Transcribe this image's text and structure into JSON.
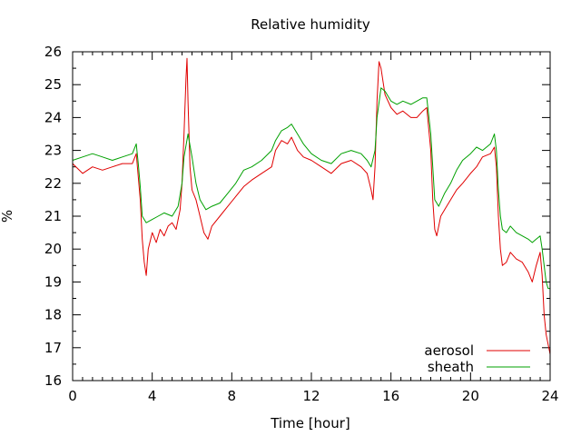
{
  "chart_data": {
    "type": "line",
    "title": "Relative humidity",
    "xlabel": "Time [hour]",
    "ylabel": "%",
    "xlim": [
      0,
      24
    ],
    "ylim": [
      16,
      26
    ],
    "xticks": [
      0,
      4,
      8,
      12,
      16,
      20,
      24
    ],
    "yticks": [
      16,
      17,
      18,
      19,
      20,
      21,
      22,
      23,
      24,
      25,
      26
    ],
    "grid": false,
    "legend_position": "bottom-right",
    "series": [
      {
        "name": "aerosol",
        "color": "#e00000",
        "points": [
          [
            0.0,
            22.6
          ],
          [
            0.5,
            22.3
          ],
          [
            1.0,
            22.5
          ],
          [
            1.5,
            22.4
          ],
          [
            2.0,
            22.5
          ],
          [
            2.5,
            22.6
          ],
          [
            3.0,
            22.6
          ],
          [
            3.2,
            22.9
          ],
          [
            3.3,
            22.2
          ],
          [
            3.4,
            21.5
          ],
          [
            3.5,
            20.3
          ],
          [
            3.6,
            19.6
          ],
          [
            3.7,
            19.2
          ],
          [
            3.8,
            20.0
          ],
          [
            4.0,
            20.5
          ],
          [
            4.2,
            20.2
          ],
          [
            4.4,
            20.6
          ],
          [
            4.6,
            20.4
          ],
          [
            4.8,
            20.7
          ],
          [
            5.0,
            20.8
          ],
          [
            5.2,
            20.6
          ],
          [
            5.4,
            21.2
          ],
          [
            5.5,
            22.0
          ],
          [
            5.6,
            23.5
          ],
          [
            5.7,
            25.2
          ],
          [
            5.75,
            25.8
          ],
          [
            5.8,
            24.5
          ],
          [
            5.9,
            22.5
          ],
          [
            6.0,
            21.8
          ],
          [
            6.2,
            21.5
          ],
          [
            6.4,
            21.0
          ],
          [
            6.6,
            20.5
          ],
          [
            6.8,
            20.3
          ],
          [
            7.0,
            20.7
          ],
          [
            7.4,
            21.0
          ],
          [
            7.8,
            21.3
          ],
          [
            8.2,
            21.6
          ],
          [
            8.6,
            21.9
          ],
          [
            9.0,
            22.1
          ],
          [
            9.5,
            22.3
          ],
          [
            10.0,
            22.5
          ],
          [
            10.2,
            23.0
          ],
          [
            10.5,
            23.3
          ],
          [
            10.8,
            23.2
          ],
          [
            11.0,
            23.4
          ],
          [
            11.3,
            23.0
          ],
          [
            11.6,
            22.8
          ],
          [
            12.0,
            22.7
          ],
          [
            12.5,
            22.5
          ],
          [
            13.0,
            22.3
          ],
          [
            13.5,
            22.6
          ],
          [
            14.0,
            22.7
          ],
          [
            14.5,
            22.5
          ],
          [
            14.8,
            22.3
          ],
          [
            15.0,
            21.8
          ],
          [
            15.1,
            21.5
          ],
          [
            15.2,
            22.5
          ],
          [
            15.3,
            24.5
          ],
          [
            15.4,
            25.7
          ],
          [
            15.5,
            25.5
          ],
          [
            15.7,
            24.7
          ],
          [
            16.0,
            24.3
          ],
          [
            16.3,
            24.1
          ],
          [
            16.6,
            24.2
          ],
          [
            17.0,
            24.0
          ],
          [
            17.3,
            24.0
          ],
          [
            17.6,
            24.2
          ],
          [
            17.8,
            24.3
          ],
          [
            18.0,
            23.0
          ],
          [
            18.1,
            21.5
          ],
          [
            18.2,
            20.6
          ],
          [
            18.3,
            20.4
          ],
          [
            18.5,
            21.0
          ],
          [
            18.8,
            21.3
          ],
          [
            19.0,
            21.5
          ],
          [
            19.3,
            21.8
          ],
          [
            19.6,
            22.0
          ],
          [
            20.0,
            22.3
          ],
          [
            20.3,
            22.5
          ],
          [
            20.6,
            22.8
          ],
          [
            21.0,
            22.9
          ],
          [
            21.2,
            23.1
          ],
          [
            21.3,
            22.5
          ],
          [
            21.4,
            21.0
          ],
          [
            21.5,
            20.0
          ],
          [
            21.6,
            19.5
          ],
          [
            21.8,
            19.6
          ],
          [
            22.0,
            19.9
          ],
          [
            22.3,
            19.7
          ],
          [
            22.6,
            19.6
          ],
          [
            22.9,
            19.3
          ],
          [
            23.1,
            19.0
          ],
          [
            23.3,
            19.5
          ],
          [
            23.5,
            19.9
          ],
          [
            23.6,
            19.2
          ],
          [
            23.7,
            18.0
          ],
          [
            23.8,
            17.4
          ],
          [
            23.9,
            17.1
          ],
          [
            24.0,
            16.8
          ]
        ]
      },
      {
        "name": "sheath",
        "color": "#00a000",
        "points": [
          [
            0.0,
            22.7
          ],
          [
            0.5,
            22.8
          ],
          [
            1.0,
            22.9
          ],
          [
            1.5,
            22.8
          ],
          [
            2.0,
            22.7
          ],
          [
            2.5,
            22.8
          ],
          [
            3.0,
            22.9
          ],
          [
            3.2,
            23.2
          ],
          [
            3.3,
            22.6
          ],
          [
            3.4,
            21.9
          ],
          [
            3.5,
            21.0
          ],
          [
            3.7,
            20.8
          ],
          [
            4.0,
            20.9
          ],
          [
            4.3,
            21.0
          ],
          [
            4.6,
            21.1
          ],
          [
            5.0,
            21.0
          ],
          [
            5.3,
            21.3
          ],
          [
            5.5,
            22.0
          ],
          [
            5.6,
            22.8
          ],
          [
            5.8,
            23.5
          ],
          [
            6.0,
            22.8
          ],
          [
            6.2,
            22.0
          ],
          [
            6.4,
            21.5
          ],
          [
            6.7,
            21.2
          ],
          [
            7.0,
            21.3
          ],
          [
            7.4,
            21.4
          ],
          [
            7.8,
            21.7
          ],
          [
            8.2,
            22.0
          ],
          [
            8.6,
            22.4
          ],
          [
            9.0,
            22.5
          ],
          [
            9.5,
            22.7
          ],
          [
            10.0,
            23.0
          ],
          [
            10.2,
            23.3
          ],
          [
            10.5,
            23.6
          ],
          [
            10.8,
            23.7
          ],
          [
            11.0,
            23.8
          ],
          [
            11.3,
            23.5
          ],
          [
            11.6,
            23.2
          ],
          [
            12.0,
            22.9
          ],
          [
            12.5,
            22.7
          ],
          [
            13.0,
            22.6
          ],
          [
            13.5,
            22.9
          ],
          [
            14.0,
            23.0
          ],
          [
            14.5,
            22.9
          ],
          [
            14.8,
            22.7
          ],
          [
            15.0,
            22.5
          ],
          [
            15.2,
            23.0
          ],
          [
            15.3,
            24.0
          ],
          [
            15.5,
            24.9
          ],
          [
            15.7,
            24.8
          ],
          [
            16.0,
            24.5
          ],
          [
            16.3,
            24.4
          ],
          [
            16.6,
            24.5
          ],
          [
            17.0,
            24.4
          ],
          [
            17.3,
            24.5
          ],
          [
            17.6,
            24.6
          ],
          [
            17.8,
            24.6
          ],
          [
            18.0,
            23.5
          ],
          [
            18.1,
            22.5
          ],
          [
            18.2,
            21.5
          ],
          [
            18.4,
            21.3
          ],
          [
            18.7,
            21.7
          ],
          [
            19.0,
            22.0
          ],
          [
            19.3,
            22.4
          ],
          [
            19.6,
            22.7
          ],
          [
            20.0,
            22.9
          ],
          [
            20.3,
            23.1
          ],
          [
            20.6,
            23.0
          ],
          [
            21.0,
            23.2
          ],
          [
            21.2,
            23.5
          ],
          [
            21.3,
            23.0
          ],
          [
            21.4,
            21.8
          ],
          [
            21.5,
            21.0
          ],
          [
            21.6,
            20.6
          ],
          [
            21.8,
            20.5
          ],
          [
            22.0,
            20.7
          ],
          [
            22.3,
            20.5
          ],
          [
            22.6,
            20.4
          ],
          [
            22.9,
            20.3
          ],
          [
            23.1,
            20.2
          ],
          [
            23.3,
            20.3
          ],
          [
            23.5,
            20.4
          ],
          [
            23.6,
            20.0
          ],
          [
            23.7,
            19.5
          ],
          [
            23.8,
            19.0
          ],
          [
            23.9,
            18.8
          ],
          [
            24.0,
            18.8
          ]
        ]
      }
    ]
  }
}
